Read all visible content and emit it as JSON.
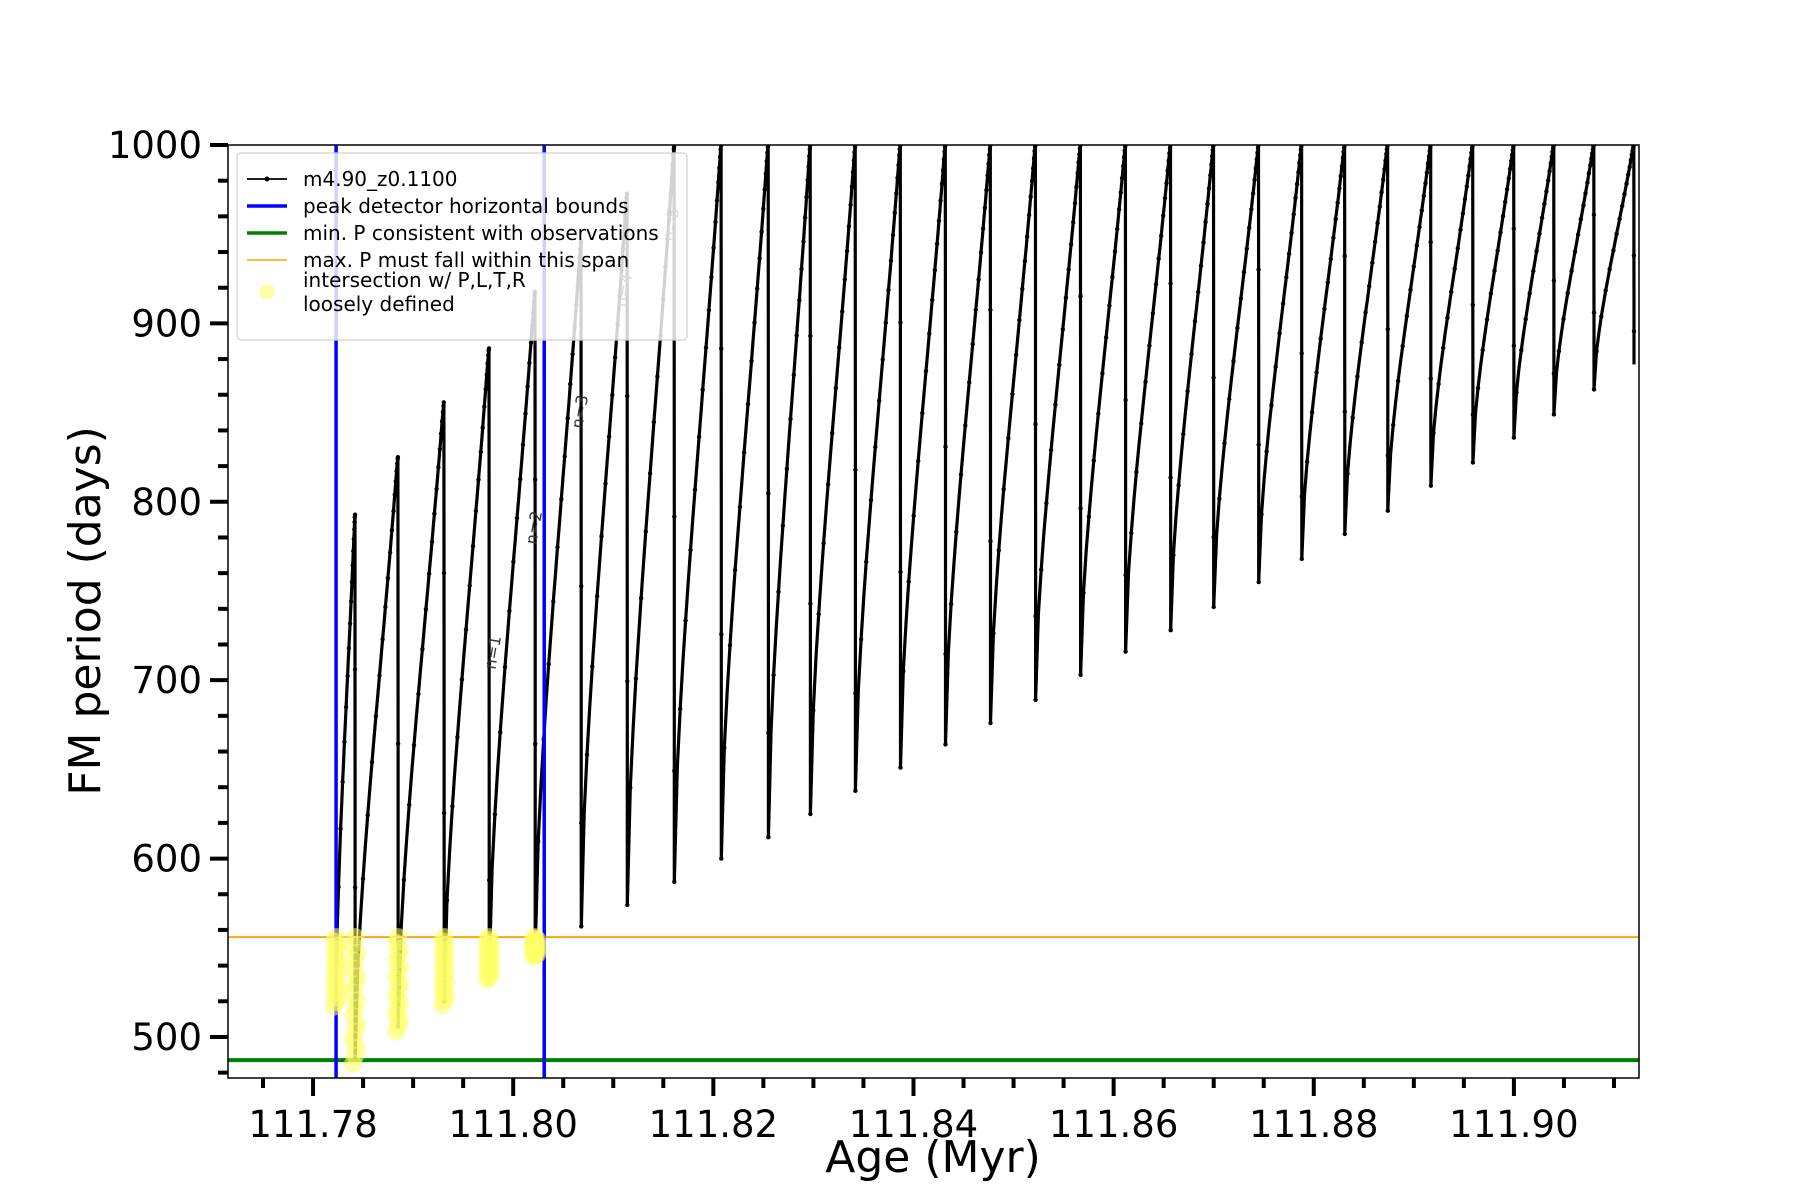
{
  "chart_data": {
    "type": "line",
    "xlabel": "Age (Myr)",
    "ylabel": "FM period (days)",
    "xlim": [
      111.7715,
      111.9125
    ],
    "ylim": [
      477,
      1000
    ],
    "x_ticks": [
      111.78,
      111.8,
      111.82,
      111.84,
      111.86,
      111.88,
      111.9
    ],
    "x_tick_labels": [
      "111.78",
      "111.80",
      "111.82",
      "111.84",
      "111.86",
      "111.88",
      "111.90"
    ],
    "y_ticks": [
      500,
      600,
      700,
      800,
      900,
      1000
    ],
    "y_tick_labels": [
      "500",
      "600",
      "700",
      "800",
      "900",
      "1000"
    ],
    "legend_position": "upper left",
    "legend": [
      {
        "label": "m4.90_z0.1100",
        "kind": "line-marker",
        "color": "#000000"
      },
      {
        "label": "peak detector horizontal bounds",
        "kind": "line",
        "color": "#0000ff"
      },
      {
        "label": "min. P consistent with observations",
        "kind": "line",
        "color": "#008000"
      },
      {
        "label": "max. P must fall within this span",
        "kind": "line",
        "color": "#ffa500"
      },
      {
        "label_lines": [
          "intersection w/ P,L,T,R",
          "loosely defined"
        ],
        "kind": "marker",
        "color": "#ffff66"
      }
    ],
    "series": [
      {
        "name": "m4.90_z0.1100",
        "color": "#000000",
        "pulses": [
          {
            "start": 111.7823,
            "end": 111.7842,
            "min_left": 520,
            "peak": 793,
            "min_right": 488
          },
          {
            "start": 111.7842,
            "end": 111.7885,
            "min_left": 488,
            "peak": 825,
            "min_right": 506
          },
          {
            "start": 111.7885,
            "end": 111.7931,
            "min_left": 506,
            "peak": 856,
            "min_right": 520
          },
          {
            "start": 111.7931,
            "end": 111.7976,
            "min_left": 520,
            "peak": 886,
            "min_right": 535
          },
          {
            "start": 111.7976,
            "end": 111.8022,
            "min_left": 535,
            "peak": 918,
            "min_right": 548
          },
          {
            "start": 111.8022,
            "end": 111.8068,
            "min_left": 548,
            "peak": 946,
            "min_right": 562
          },
          {
            "start": 111.8068,
            "end": 111.8114,
            "min_left": 562,
            "peak": 973,
            "min_right": 574
          },
          {
            "start": 111.8114,
            "end": 111.8161,
            "min_left": 574,
            "peak": 999,
            "min_right": 587
          },
          {
            "start": 111.8161,
            "end": 111.8208,
            "min_left": 587,
            "peak": 1000,
            "min_right": 600
          },
          {
            "start": 111.8208,
            "end": 111.8255,
            "min_left": 600,
            "peak": 1000,
            "min_right": 612
          },
          {
            "start": 111.8255,
            "end": 111.8297,
            "min_left": 612,
            "peak": 1000,
            "min_right": 625
          },
          {
            "start": 111.8297,
            "end": 111.8342,
            "min_left": 625,
            "peak": 1000,
            "min_right": 638
          },
          {
            "start": 111.8342,
            "end": 111.8387,
            "min_left": 638,
            "peak": 1000,
            "min_right": 651
          },
          {
            "start": 111.8387,
            "end": 111.8432,
            "min_left": 651,
            "peak": 1000,
            "min_right": 664
          },
          {
            "start": 111.8432,
            "end": 111.8477,
            "min_left": 664,
            "peak": 1000,
            "min_right": 676
          },
          {
            "start": 111.8477,
            "end": 111.8522,
            "min_left": 676,
            "peak": 1000,
            "min_right": 689
          },
          {
            "start": 111.8522,
            "end": 111.8567,
            "min_left": 689,
            "peak": 1000,
            "min_right": 703
          },
          {
            "start": 111.8567,
            "end": 111.8612,
            "min_left": 703,
            "peak": 1000,
            "min_right": 716
          },
          {
            "start": 111.8612,
            "end": 111.8657,
            "min_left": 716,
            "peak": 1000,
            "min_right": 728
          },
          {
            "start": 111.8657,
            "end": 111.87,
            "min_left": 728,
            "peak": 1000,
            "min_right": 741
          },
          {
            "start": 111.87,
            "end": 111.8745,
            "min_left": 741,
            "peak": 1000,
            "min_right": 755
          },
          {
            "start": 111.8745,
            "end": 111.8788,
            "min_left": 755,
            "peak": 1000,
            "min_right": 768
          },
          {
            "start": 111.8788,
            "end": 111.8831,
            "min_left": 768,
            "peak": 1000,
            "min_right": 782
          },
          {
            "start": 111.8831,
            "end": 111.8874,
            "min_left": 782,
            "peak": 1000,
            "min_right": 795
          },
          {
            "start": 111.8874,
            "end": 111.8917,
            "min_left": 795,
            "peak": 1000,
            "min_right": 809
          },
          {
            "start": 111.8917,
            "end": 111.8959,
            "min_left": 809,
            "peak": 1000,
            "min_right": 822
          },
          {
            "start": 111.8959,
            "end": 111.9,
            "min_left": 822,
            "peak": 1000,
            "min_right": 836
          },
          {
            "start": 111.9,
            "end": 111.904,
            "min_left": 836,
            "peak": 1000,
            "min_right": 849
          },
          {
            "start": 111.904,
            "end": 111.908,
            "min_left": 849,
            "peak": 1000,
            "min_right": 863
          },
          {
            "start": 111.908,
            "end": 111.912,
            "min_left": 863,
            "peak": 1000,
            "min_right": 877
          }
        ]
      }
    ],
    "vertical_bounds": {
      "color": "#0000ff",
      "x": [
        111.7823,
        111.8031
      ]
    },
    "hlines": [
      {
        "name": "min",
        "color": "#008000",
        "y": 487
      },
      {
        "name": "max",
        "color": "#ffa500",
        "y": 556
      }
    ],
    "intersections": {
      "color": "#ffff66",
      "clusters": [
        {
          "x": 111.7823,
          "y_min": 517,
          "y_max": 556
        },
        {
          "x": 111.7842,
          "y_min": 485,
          "y_max": 556
        },
        {
          "x": 111.7885,
          "y_min": 503,
          "y_max": 556
        },
        {
          "x": 111.7931,
          "y_min": 518,
          "y_max": 556
        },
        {
          "x": 111.7976,
          "y_min": 532,
          "y_max": 556
        },
        {
          "x": 111.8022,
          "y_min": 545,
          "y_max": 556
        }
      ]
    },
    "annotations": [
      {
        "text": "n=1",
        "x": 111.7985,
        "y": 715
      },
      {
        "text": "n=2",
        "x": 111.8026,
        "y": 785
      },
      {
        "text": "n=3",
        "x": 111.8072,
        "y": 850
      },
      {
        "text": "n=4",
        "x": 111.8116,
        "y": 918
      },
      {
        "text": "n=5",
        "x": 111.8163,
        "y": 955
      }
    ]
  }
}
